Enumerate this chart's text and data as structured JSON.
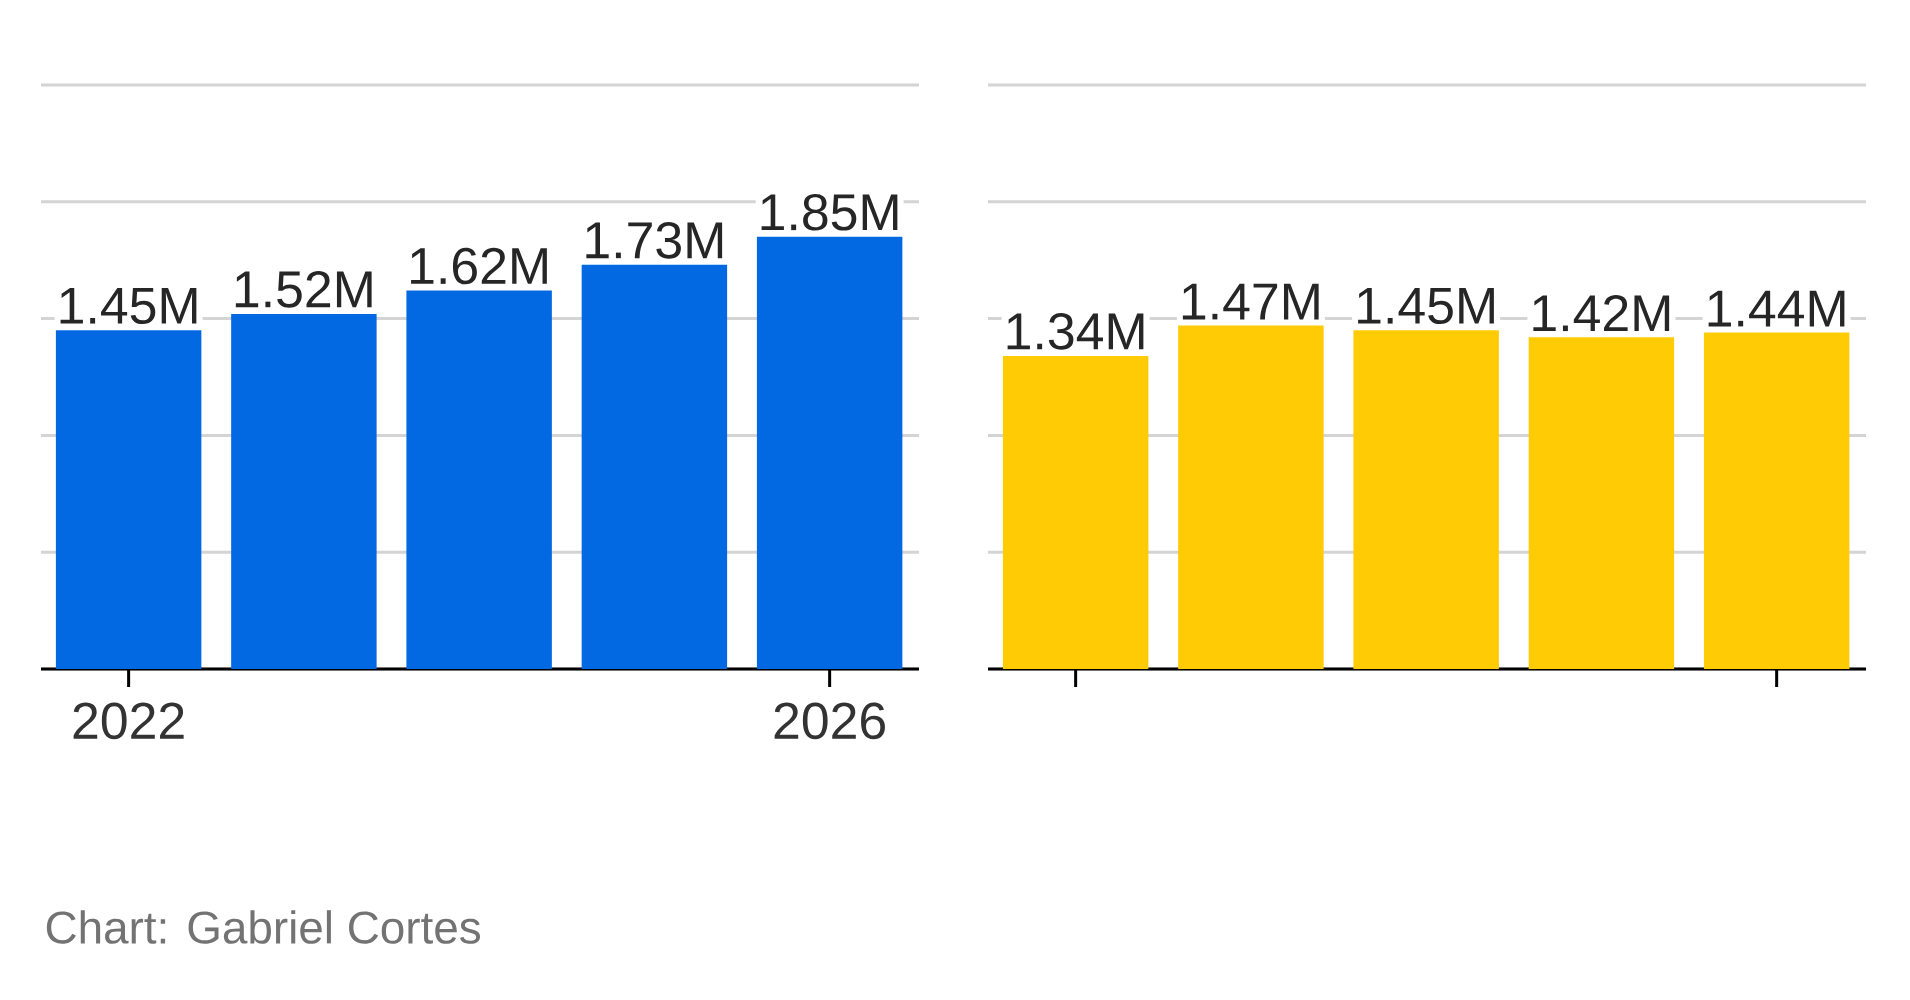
{
  "chart_data": [
    {
      "type": "bar",
      "categories": [
        "2022",
        null,
        null,
        null,
        "2026"
      ],
      "values": [
        1.45,
        1.52,
        1.62,
        1.73,
        1.85
      ],
      "value_labels": [
        "1.45M",
        "1.52M",
        "1.62M",
        "1.73M",
        "1.85M"
      ],
      "color": "#0369e3",
      "ylim": [
        0,
        2.5
      ],
      "yticks": [
        {
          "value": 0,
          "label": null
        },
        {
          "value": 0.5,
          "label": null
        },
        {
          "value": 1,
          "label": null
        },
        {
          "value": 1.5,
          "label": null
        },
        {
          "value": 2,
          "label": null
        },
        {
          "value": 2.5,
          "label": null
        }
      ],
      "grid": "y",
      "tick_labels": "x",
      "annotations": [
        "Chart: Gabriel Cortes"
      ]
    },
    {
      "type": "bar",
      "categories": [
        null,
        null,
        null,
        null,
        null
      ],
      "values": [
        1.34,
        1.47,
        1.45,
        1.42,
        1.44
      ],
      "value_labels": [
        "1.34M",
        "1.47M",
        "1.45M",
        "1.42M",
        "1.44M"
      ],
      "color": "#ffcb05",
      "ylim": [
        0,
        2.5
      ],
      "yticks": [
        {
          "value": 0,
          "label": null
        },
        {
          "value": 0.5,
          "label": null
        },
        {
          "value": 1,
          "label": null
        },
        {
          "value": 1.5,
          "label": null
        },
        {
          "value": 2,
          "label": null
        },
        {
          "value": 2.5,
          "label": null
        }
      ],
      "grid": "y",
      "tick_labels": false
    }
  ]
}
